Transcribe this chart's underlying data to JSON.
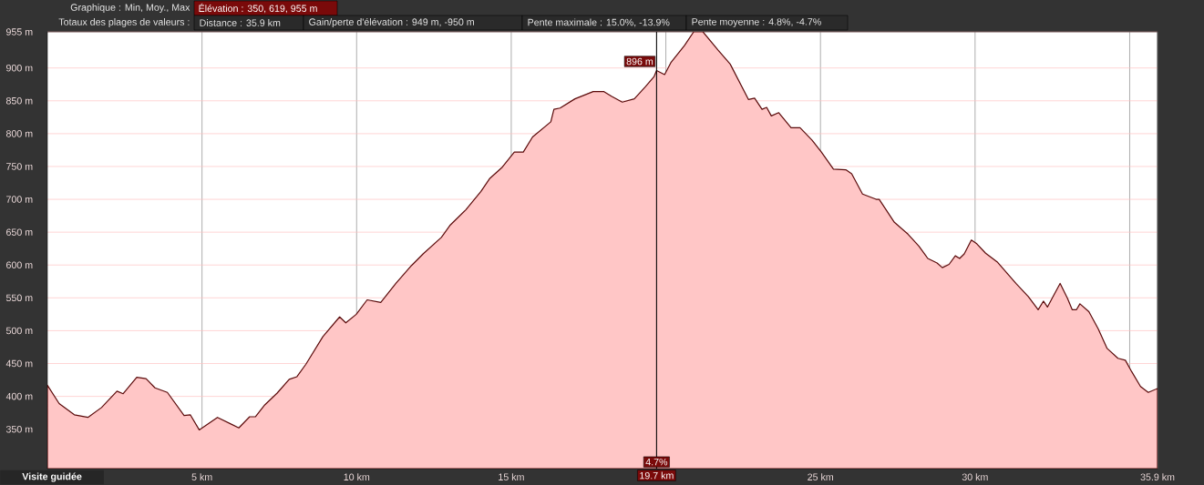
{
  "chart_data": {
    "type": "area",
    "title": "Graphique : Min, Moy., Max",
    "subtitle": "Élévation : 350, 619, 955 m",
    "annotations": [
      "Totaux des plages de valeurs :",
      "Distance : 35.9 km",
      "Gain/perte d'élévation : 949 m, -950 m",
      "Pente maximale : 15.0%, -13.9%",
      "Pente moyenne : 4.8%, -4.7%",
      "Visite guidée",
      {
        "text": "896 m",
        "x": 19.7,
        "y": 896
      },
      {
        "text": "4.7%",
        "x": 19.7
      }
    ],
    "x": [
      0,
      0.38,
      0.87,
      1.31,
      1.75,
      2.25,
      2.45,
      2.89,
      3.19,
      3.48,
      3.88,
      4.42,
      4.62,
      4.91,
      5.5,
      6.19,
      6.54,
      6.73,
      7.03,
      7.43,
      7.82,
      8.07,
      8.36,
      8.91,
      9.45,
      9.65,
      9.99,
      10.34,
      10.78,
      11.27,
      11.77,
      12.15,
      12.74,
      13.03,
      13.53,
      14.02,
      14.31,
      14.71,
      15.1,
      15.39,
      15.69,
      16.28,
      16.38,
      16.58,
      17.06,
      17.65,
      18.0,
      18.24,
      18.59,
      18.98,
      19.33,
      19.62,
      19.7,
      19.96,
      20.16,
      20.6,
      20.9,
      21.2,
      21.69,
      22.08,
      22.67,
      22.87,
      23.11,
      23.26,
      23.41,
      23.65,
      24.05,
      24.34,
      24.73,
      25.03,
      25.42,
      25.82,
      26.01,
      26.36,
      26.8,
      26.9,
      27.39,
      27.83,
      28.18,
      28.47,
      28.77,
      28.94,
      29.16,
      29.36,
      29.5,
      29.65,
      29.88,
      30.04,
      30.34,
      30.73,
      31.32,
      31.72,
      32.04,
      32.21,
      32.34,
      32.5,
      32.75,
      32.99,
      33.14,
      33.28,
      33.39,
      33.68,
      33.98,
      34.27,
      34.62,
      34.86,
      35.06,
      35.35,
      35.6,
      35.9
    ],
    "values": [
      417,
      389,
      372,
      368,
      383,
      408,
      404,
      429,
      427,
      413,
      406,
      371,
      372,
      349,
      368,
      352,
      369,
      369,
      387,
      405,
      426,
      430,
      449,
      491,
      521,
      512,
      525,
      547,
      543,
      572,
      599,
      617,
      642,
      661,
      684,
      712,
      732,
      749,
      772,
      772,
      795,
      818,
      837,
      839,
      853,
      864,
      864,
      857,
      848,
      853,
      871,
      887,
      896,
      890,
      908,
      934,
      955,
      955,
      927,
      906,
      852,
      854,
      837,
      840,
      827,
      832,
      809,
      809,
      790,
      772,
      746,
      745,
      739,
      708,
      700,
      700,
      665,
      647,
      629,
      610,
      603,
      596,
      601,
      614,
      610,
      617,
      638,
      633,
      618,
      604,
      572,
      552,
      532,
      545,
      536,
      550,
      572,
      549,
      532,
      532,
      541,
      529,
      503,
      473,
      458,
      455,
      438,
      415,
      406,
      412
    ],
    "color": "#5a0a0a",
    "xlim": [
      0,
      35.9
    ],
    "ylim": [
      290,
      955
    ],
    "xticks": [
      {
        "value": 5,
        "label": "5 km"
      },
      {
        "value": 10,
        "label": "10 km"
      },
      {
        "value": 15,
        "label": "15 km"
      },
      {
        "value": 20,
        "label": null
      },
      {
        "value": 25,
        "label": "25 km"
      },
      {
        "value": 30,
        "label": "30 km"
      },
      {
        "value": 35,
        "label": null
      },
      {
        "value": 35.9,
        "label": "35.9 km"
      }
    ],
    "yticks": [
      {
        "value": 350,
        "label": "350 m"
      },
      {
        "value": 400,
        "label": "400 m"
      },
      {
        "value": 450,
        "label": "450 m"
      },
      {
        "value": 500,
        "label": "500 m"
      },
      {
        "value": 550,
        "label": "550 m"
      },
      {
        "value": 600,
        "label": "600 m"
      },
      {
        "value": 650,
        "label": "650 m"
      },
      {
        "value": 700,
        "label": "700 m"
      },
      {
        "value": 750,
        "label": "750 m"
      },
      {
        "value": 800,
        "label": "800 m"
      },
      {
        "value": 850,
        "label": "850 m"
      },
      {
        "value": 900,
        "label": "900 m"
      },
      {
        "value": 955,
        "label": "955 m"
      }
    ],
    "grid": true,
    "ref_lines": [
      {
        "axis": "x",
        "value": 19.7,
        "label": "19.7 km",
        "color": "#000000"
      }
    ]
  }
}
